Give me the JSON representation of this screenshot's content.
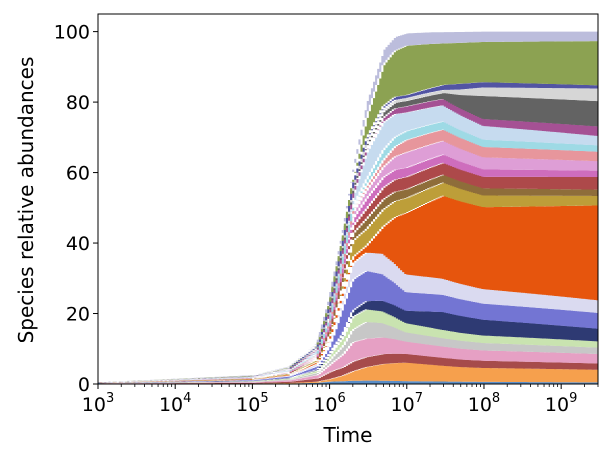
{
  "chart_data": {
    "type": "area",
    "title": "",
    "xlabel": "Time",
    "ylabel": "Species relative abundances",
    "x_scale": "log",
    "xlim": [
      1000,
      3000000000
    ],
    "ylim": [
      0,
      105
    ],
    "grid": false,
    "legend": "none",
    "xticks": [
      {
        "value": 1000,
        "base": "10",
        "exp": "3"
      },
      {
        "value": 10000,
        "base": "10",
        "exp": "4"
      },
      {
        "value": 100000,
        "base": "10",
        "exp": "5"
      },
      {
        "value": 1000000,
        "base": "10",
        "exp": "6"
      },
      {
        "value": 10000000,
        "base": "10",
        "exp": "7"
      },
      {
        "value": 100000000,
        "base": "10",
        "exp": "8"
      },
      {
        "value": 1000000000,
        "base": "10",
        "exp": "9"
      }
    ],
    "yticks": [
      "0",
      "20",
      "40",
      "60",
      "80",
      "100"
    ],
    "total_abundance": {
      "x": [
        1000,
        10000,
        100000,
        300000,
        700000,
        1000000,
        1500000,
        2000000,
        3000000,
        5000000,
        7000000,
        10000000,
        20000000,
        50000000,
        100000000,
        3000000000
      ],
      "y": [
        0.5,
        1.5,
        2.5,
        5,
        12,
        25,
        45,
        62,
        80,
        95,
        98.5,
        99.5,
        99.8,
        99.9,
        100,
        100
      ]
    },
    "species": [
      {
        "color": "#5b8fc9",
        "x": [
          1000,
          1000000,
          3000000,
          3000000000
        ],
        "y": [
          0.5,
          1,
          1,
          0.5
        ]
      },
      {
        "color": "#f6a04d",
        "x": [
          1000,
          1000000,
          3000000,
          10000000,
          50000000,
          3000000000
        ],
        "y": [
          0,
          1,
          4,
          6,
          5,
          4
        ]
      },
      {
        "color": "#a64b4b",
        "x": [
          1000,
          10000,
          100000,
          1000000,
          3000000,
          3000000000
        ],
        "y": [
          0,
          1,
          1.5,
          3,
          3,
          2
        ]
      },
      {
        "color": "#e6a0c4",
        "x": [
          1000,
          1000000,
          2000000,
          10000000,
          3000000000
        ],
        "y": [
          0,
          3,
          6,
          4,
          3
        ]
      },
      {
        "color": "#c7c7c7",
        "x": [
          1000,
          1000000,
          3000000,
          10000000,
          3000000000
        ],
        "y": [
          0,
          2,
          5,
          3,
          2
        ]
      },
      {
        "color": "#c9e3b0",
        "x": [
          1000,
          1000000,
          2000000,
          10000000,
          3000000000
        ],
        "y": [
          0,
          2,
          4,
          3,
          2
        ]
      },
      {
        "color": "#2e3a73",
        "x": [
          1000,
          1000000,
          10000000,
          30000000,
          3000000000
        ],
        "y": [
          0,
          1,
          4,
          6,
          4
        ]
      },
      {
        "color": "#7375d3",
        "x": [
          1000,
          1000000,
          1500000,
          3000000,
          10000000,
          3000000000
        ],
        "y": [
          0,
          3,
          10,
          9,
          6,
          5
        ]
      },
      {
        "color": "#dadaf0",
        "x": [
          1000,
          1000000,
          2000000,
          5000000,
          3000000000
        ],
        "y": [
          0,
          2,
          5,
          6,
          4
        ]
      },
      {
        "color": "#e6550d",
        "x": [
          1000,
          3000000,
          5000000,
          10000000,
          30000000,
          3000000000
        ],
        "y": [
          0,
          2,
          8,
          20,
          28,
          30
        ]
      },
      {
        "color": "#bd9e39",
        "x": [
          1000,
          1000000,
          2000000,
          5000000,
          3000000000
        ],
        "y": [
          0,
          2,
          5,
          5,
          3
        ]
      },
      {
        "color": "#8e6d3a",
        "x": [
          1000,
          1000000,
          3000000,
          3000000000
        ],
        "y": [
          0,
          1,
          3,
          2
        ]
      },
      {
        "color": "#ad494a",
        "x": [
          1000,
          1000000,
          3000000,
          10000000,
          3000000000
        ],
        "y": [
          0,
          1,
          3,
          4,
          4
        ]
      },
      {
        "color": "#ce6dbd",
        "x": [
          1000,
          1000000,
          3000000,
          10000000,
          3000000000
        ],
        "y": [
          0,
          1,
          3,
          3,
          2
        ]
      },
      {
        "color": "#de9ed6",
        "x": [
          1000,
          1000000,
          5000000,
          10000000,
          3000000000
        ],
        "y": [
          0,
          1,
          3,
          5,
          3
        ]
      },
      {
        "color": "#e7969c",
        "x": [
          1000,
          2000000,
          5000000,
          10000000,
          3000000000
        ],
        "y": [
          0,
          1,
          2,
          4,
          3
        ]
      },
      {
        "color": "#9edae5",
        "x": [
          1000,
          2000000,
          5000000,
          3000000000
        ],
        "y": [
          0,
          1,
          3,
          2
        ]
      },
      {
        "color": "#c6dbef",
        "x": [
          1000,
          2000000,
          3000000,
          5000000,
          10000000,
          3000000000
        ],
        "y": [
          0,
          3,
          8,
          8,
          6,
          3
        ]
      },
      {
        "color": "#a55194",
        "x": [
          1000,
          3000000,
          10000000,
          3000000000
        ],
        "y": [
          0,
          1,
          2,
          3
        ]
      },
      {
        "color": "#636363",
        "x": [
          1000,
          30000000,
          100000000,
          3000000000
        ],
        "y": [
          0,
          2,
          8,
          8
        ]
      },
      {
        "color": "#d6d6d6",
        "x": [
          1000,
          30000000,
          100000000,
          3000000000
        ],
        "y": [
          0,
          1,
          3,
          4
        ]
      },
      {
        "color": "#5254a3",
        "x": [
          1000,
          10000000,
          50000000,
          3000000000
        ],
        "y": [
          0,
          1,
          2,
          1
        ]
      },
      {
        "color": "#8ca252",
        "x": [
          1000,
          2000000,
          3000000,
          5000000,
          10000000,
          30000000,
          3000000000
        ],
        "y": [
          0,
          2,
          6,
          12,
          16,
          14,
          14
        ]
      },
      {
        "color": "#bcbddc",
        "x": [
          1000,
          1000000,
          3000000,
          10000000,
          3000000000
        ],
        "y": [
          0,
          2,
          5,
          4,
          3
        ]
      }
    ]
  }
}
